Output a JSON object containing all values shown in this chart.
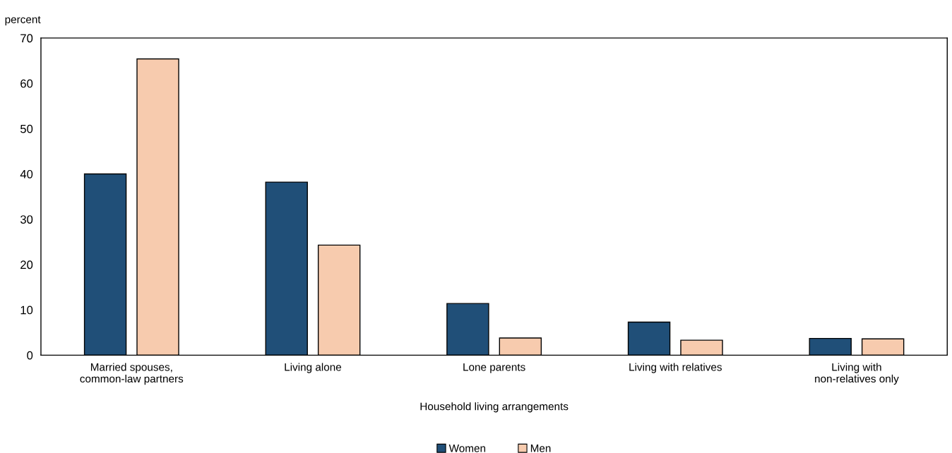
{
  "chart_data": {
    "type": "bar",
    "categories": [
      "Married spouses,\ncommon-law partners",
      "Living alone",
      "Lone parents",
      "Living with relatives",
      "Living with\nnon-relatives only"
    ],
    "series": [
      {
        "name": "Women",
        "color": "#204f78",
        "values": [
          40.0,
          38.2,
          11.4,
          7.3,
          3.7
        ]
      },
      {
        "name": "Men",
        "color": "#f7cbae",
        "values": [
          65.4,
          24.3,
          3.8,
          3.3,
          3.6
        ]
      }
    ],
    "ylabel": "percent",
    "xlabel": "Household living arrangements",
    "ylim": [
      0,
      70
    ],
    "yticks": [
      0,
      10,
      20,
      30,
      40,
      50,
      60,
      70
    ],
    "grid": false,
    "legend": "bottom"
  }
}
